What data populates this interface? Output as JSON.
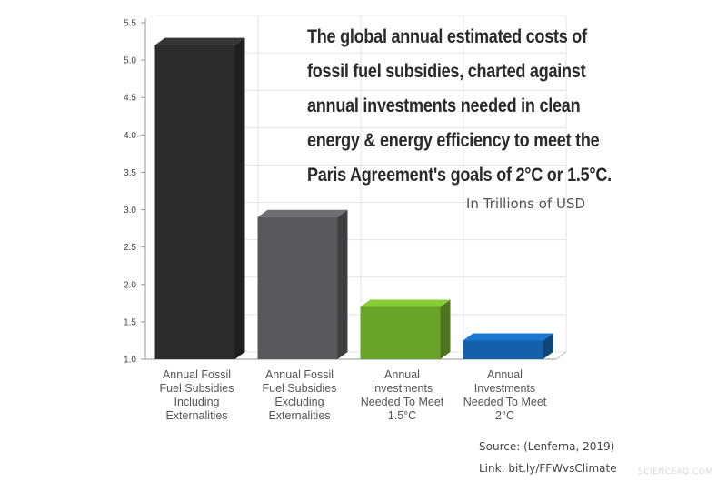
{
  "chart_data": {
    "type": "bar",
    "title_lines": [
      "The global annual estimated costs of",
      "fossil fuel subsidies, charted against",
      "annual investments needed in clean",
      "energy & energy efficiency to meet the",
      "Paris Agreement's goals of 2°C or 1.5°C."
    ],
    "subtitle": "In Trillions of USD",
    "categories": [
      [
        "Annual Fossil",
        "Fuel Subsidies",
        "Including",
        "Externalities"
      ],
      [
        "Annual Fossil",
        "Fuel Subsidies",
        "Excluding",
        "Externalities"
      ],
      [
        "Annual",
        "Investments",
        "Needed To Meet",
        "1.5°C"
      ],
      [
        "Annual",
        "Investments",
        "Needed To Meet",
        "2°C"
      ]
    ],
    "values": [
      5.2,
      2.9,
      1.7,
      1.25
    ],
    "colors": [
      "#2b2b2b",
      "#58585c",
      "#6aa32a",
      "#1560aa"
    ],
    "ylim": [
      1.0,
      5.5
    ],
    "yticks": [
      "1.0",
      "1.5",
      "2.0",
      "2.5",
      "3.0",
      "3.5",
      "4.0",
      "4.5",
      "5.0",
      "5.5"
    ],
    "grid": true,
    "legend": "none"
  },
  "footer": {
    "source": "Source: (Lenferna, 2019)",
    "link": "Link: bit.ly/FFWvsClimate",
    "watermark": "SCIENCEAQ.COM"
  }
}
